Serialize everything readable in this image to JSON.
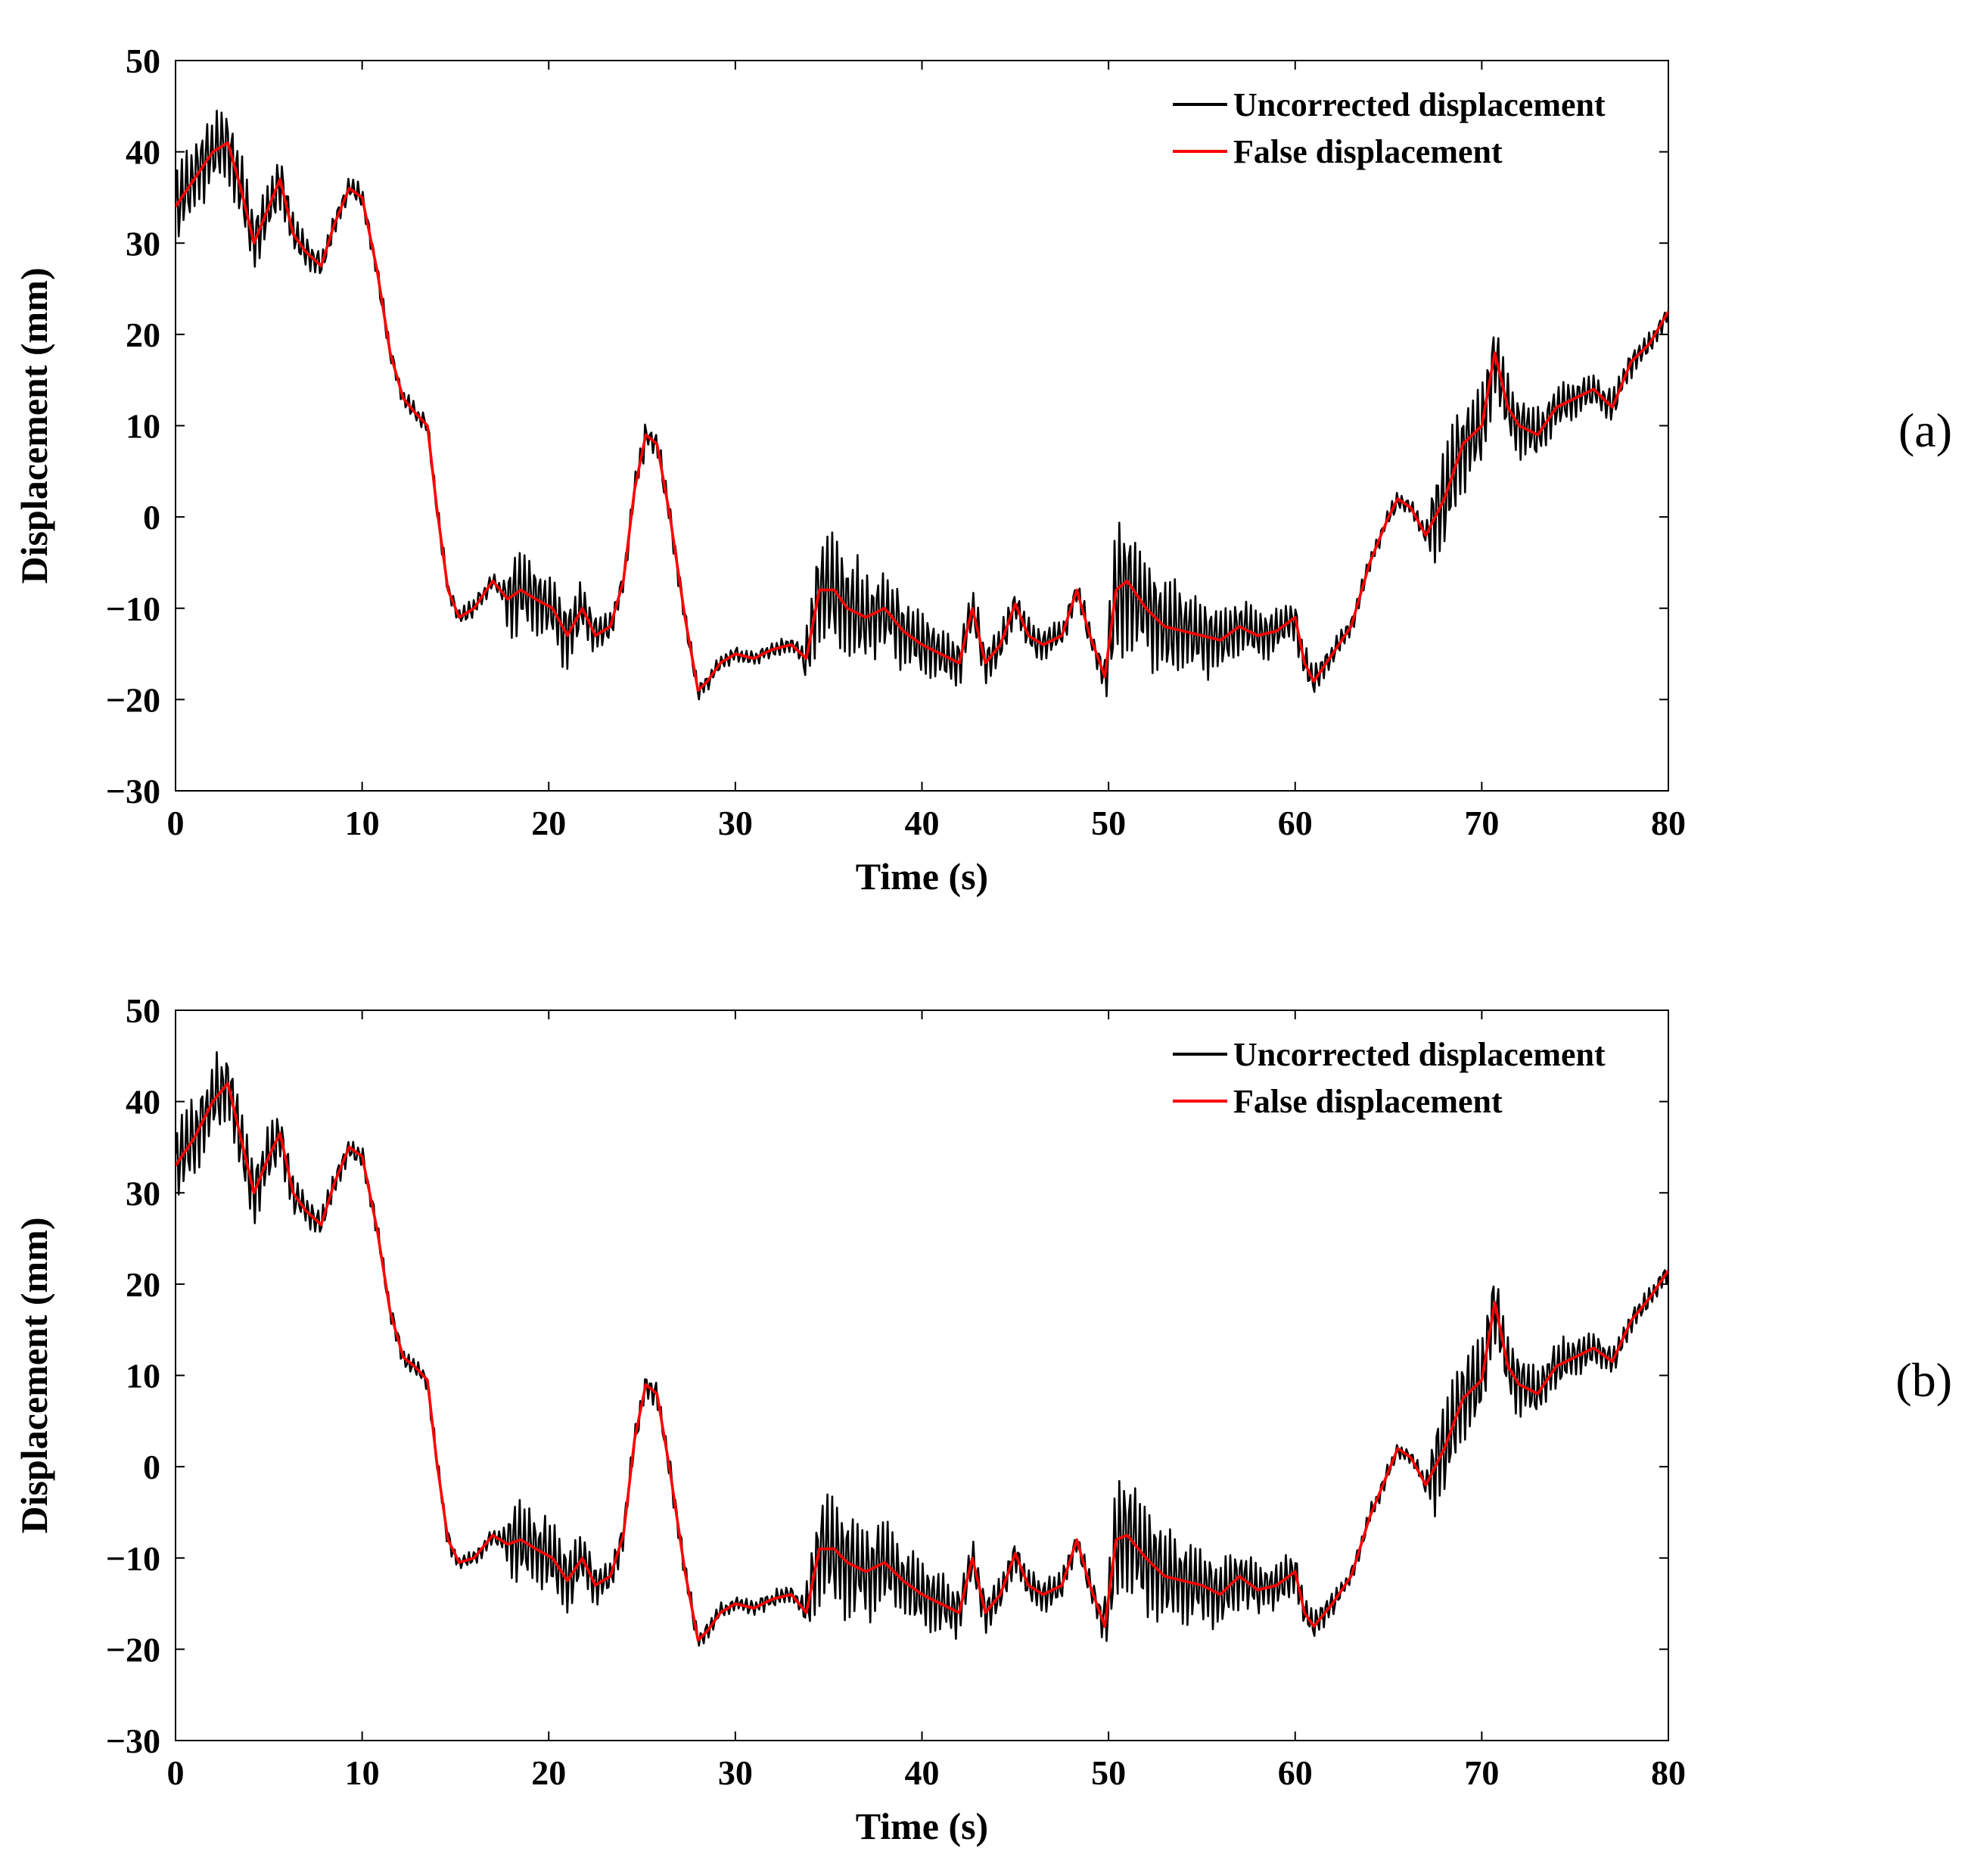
{
  "chart_data": [
    {
      "type": "line",
      "panel_label": "(a)",
      "xlabel": "Time (s)",
      "ylabel": "Displacement (mm)",
      "xlim": [
        0,
        80
      ],
      "ylim": [
        -30,
        50
      ],
      "xticks": [
        "0",
        "10",
        "20",
        "30",
        "40",
        "50",
        "60",
        "70",
        "80"
      ],
      "yticks": [
        "50",
        "40",
        "30",
        "20",
        "10",
        "0",
        "−10",
        "−20",
        "−30"
      ],
      "grid": false,
      "legend_position": "top-right",
      "series": [
        {
          "name": "Uncorrected displacement",
          "color": "#000000",
          "oscillation": [
            [
              0,
              5
            ],
            [
              4,
              4
            ],
            [
              8,
              1.5
            ],
            [
              13,
              1
            ],
            [
              17.5,
              1
            ],
            [
              18,
              5
            ],
            [
              21,
              4
            ],
            [
              23,
              2
            ],
            [
              26,
              1.5
            ],
            [
              28,
              1.2
            ],
            [
              30,
              0.8
            ],
            [
              33.5,
              1
            ],
            [
              34.5,
              7
            ],
            [
              38,
              5
            ],
            [
              42,
              3
            ],
            [
              45,
              2
            ],
            [
              49.5,
              1.5
            ],
            [
              50.5,
              8
            ],
            [
              54,
              5
            ],
            [
              58,
              3
            ],
            [
              61,
              2
            ],
            [
              63,
              1
            ],
            [
              67,
              1
            ],
            [
              67.5,
              6
            ],
            [
              70,
              5
            ],
            [
              73,
              3
            ],
            [
              76,
              2
            ],
            [
              80,
              1
            ]
          ]
        },
        {
          "name": "False displacement",
          "color": "#ff0000",
          "x": [
            0,
            1,
            2,
            2.8,
            3.5,
            4.2,
            5,
            5.6,
            6.3,
            7,
            7.8,
            8.5,
            9.3,
            10,
            10.8,
            11.5,
            12.2,
            12.8,
            13.5,
            14,
            14.6,
            15.2,
            16,
            17,
            17.8,
            18.5,
            19.3,
            20.2,
            21,
            21.8,
            22.5,
            23.3,
            24,
            24.6,
            25.2,
            25.8,
            26.5,
            27.3,
            28,
            28.5,
            29.2,
            30,
            31,
            32,
            33,
            33.8,
            34.5,
            35.3,
            36,
            37,
            38,
            39,
            40,
            41,
            42,
            42.7,
            43.4,
            44.2,
            45,
            45.7,
            46.5,
            47.5,
            48.3,
            49,
            49.8,
            50.4,
            51,
            52,
            53,
            54,
            55,
            56,
            57,
            58,
            59,
            60,
            60.5,
            61,
            62,
            63,
            64,
            65,
            65.5,
            66.2,
            67,
            68,
            69,
            70,
            70.7,
            71.4,
            72,
            73,
            74,
            75,
            76,
            77,
            78,
            79,
            80
          ],
          "y": [
            34,
            37,
            40,
            41,
            36,
            30,
            34,
            37,
            31,
            29,
            27.5,
            32,
            36,
            35,
            27,
            18,
            13,
            11.5,
            10,
            1,
            -8,
            -11,
            -10,
            -7,
            -9,
            -8,
            -9,
            -10,
            -13,
            -10,
            -13,
            -12,
            -7,
            3,
            9,
            8,
            0,
            -11,
            -19,
            -18,
            -16,
            -15,
            -15.5,
            -14.5,
            -14,
            -15.5,
            -8,
            -8,
            -10,
            -11,
            -10,
            -12.5,
            -14,
            -15,
            -16,
            -10,
            -16,
            -14,
            -9.5,
            -13,
            -14,
            -13,
            -8,
            -13,
            -17.5,
            -8,
            -7,
            -10,
            -12,
            -12.5,
            -13,
            -13.5,
            -12,
            -13,
            -12.5,
            -11,
            -16,
            -18,
            -15,
            -12,
            -5,
            0,
            2,
            1,
            -2,
            2,
            8,
            10,
            18,
            12,
            10,
            9,
            12,
            13,
            14,
            12,
            17,
            19,
            22.5
          ]
        }
      ]
    },
    {
      "type": "line",
      "panel_label": "(b)",
      "xlabel": "Time (s)",
      "ylabel": "Displacement (mm)",
      "xlim": [
        0,
        80
      ],
      "ylim": [
        -30,
        50
      ],
      "xticks": [
        "0",
        "10",
        "20",
        "30",
        "40",
        "50",
        "60",
        "70",
        "80"
      ],
      "yticks": [
        "50",
        "40",
        "30",
        "20",
        "10",
        "0",
        "−10",
        "−20",
        "−30"
      ],
      "grid": false,
      "legend_position": "top-right",
      "series": [
        {
          "name": "Uncorrected displacement",
          "color": "#000000",
          "oscillation": [
            [
              0,
              5
            ],
            [
              4,
              4
            ],
            [
              8,
              1.5
            ],
            [
              13,
              1
            ],
            [
              17.5,
              1
            ],
            [
              18,
              5
            ],
            [
              21,
              4
            ],
            [
              23,
              2
            ],
            [
              26,
              1.5
            ],
            [
              28,
              1.2
            ],
            [
              30,
              0.8
            ],
            [
              33.5,
              1
            ],
            [
              34.5,
              7
            ],
            [
              38,
              5
            ],
            [
              42,
              3
            ],
            [
              45,
              2
            ],
            [
              49.5,
              1.5
            ],
            [
              50.5,
              8
            ],
            [
              54,
              5
            ],
            [
              58,
              3
            ],
            [
              61,
              2
            ],
            [
              63,
              1
            ],
            [
              67,
              1
            ],
            [
              67.5,
              6
            ],
            [
              70,
              5
            ],
            [
              73,
              3
            ],
            [
              76,
              2
            ],
            [
              80,
              1
            ]
          ]
        },
        {
          "name": "False displacement",
          "color": "#ff0000",
          "x": [
            0,
            1,
            2,
            2.8,
            3.5,
            4.2,
            5,
            5.6,
            6.3,
            7,
            7.8,
            8.5,
            9.3,
            10,
            10.8,
            11.5,
            12.2,
            12.8,
            13.5,
            14,
            14.6,
            15.2,
            16,
            17,
            17.8,
            18.5,
            19.3,
            20.2,
            21,
            21.8,
            22.5,
            23.3,
            24,
            24.6,
            25.2,
            25.8,
            26.5,
            27.3,
            28,
            28.5,
            29.2,
            30,
            31,
            32,
            33,
            33.8,
            34.5,
            35.3,
            36,
            37,
            38,
            39,
            40,
            41,
            42,
            42.7,
            43.4,
            44.2,
            45,
            45.7,
            46.5,
            47.5,
            48.3,
            49,
            49.8,
            50.4,
            51,
            52,
            53,
            54,
            55,
            56,
            57,
            58,
            59,
            60,
            60.5,
            61,
            62,
            63,
            64,
            65,
            65.5,
            66.2,
            67,
            68,
            69,
            70,
            70.7,
            71.4,
            72,
            73,
            74,
            75,
            76,
            77,
            78,
            79,
            80
          ],
          "y": [
            33,
            36,
            40,
            42,
            36,
            30,
            34,
            36.5,
            30,
            28,
            26.5,
            31,
            35,
            34,
            26,
            17,
            12,
            11,
            9.5,
            0.5,
            -8,
            -10.5,
            -10,
            -7.5,
            -8.5,
            -8,
            -9,
            -10,
            -12.5,
            -10,
            -13,
            -12,
            -7.5,
            3,
            9,
            8,
            -0.5,
            -11.5,
            -19,
            -18,
            -16,
            -15,
            -15.5,
            -14.5,
            -14,
            -16,
            -9,
            -9,
            -10.5,
            -11.5,
            -10.5,
            -12.5,
            -14,
            -15,
            -16,
            -10,
            -16,
            -14,
            -9.5,
            -13,
            -14,
            -13,
            -8,
            -13,
            -17.5,
            -8,
            -7.5,
            -10,
            -12,
            -12.5,
            -13,
            -14,
            -12,
            -13.5,
            -13,
            -11.5,
            -16,
            -17.5,
            -15,
            -12,
            -5.5,
            -0.5,
            2,
            1,
            -2,
            2,
            7.5,
            9.5,
            18,
            11,
            9,
            8,
            11,
            12,
            13,
            11.5,
            16,
            18.5,
            21.5
          ]
        }
      ]
    }
  ]
}
